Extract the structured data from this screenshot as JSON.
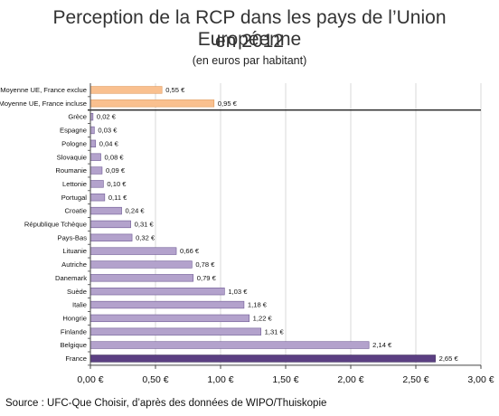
{
  "header": {
    "title_line1": "Perception de la RCP dans les pays de l’Union Européenne",
    "title_line2": "en 2012",
    "subtitle": "(en euros par habitant)"
  },
  "source": "Source : UFC-Que Choisir, d’après des données de WIPO/Thuiskopie",
  "chart_data": {
    "type": "bar",
    "orientation": "horizontal",
    "title": "Perception de la RCP dans les pays de l’Union Européenne en 2012",
    "subtitle": "(en euros par habitant)",
    "categories": [
      "Moyenne UE, France exclue",
      "Moyenne UE, France incluse",
      "Grèce",
      "Espagne",
      "Pologne",
      "Slovaquie",
      "Roumanie",
      "Lettonie",
      "Portugal",
      "Croatie",
      "République Tchèque",
      "Pays-Bas",
      "Lituanie",
      "Autriche",
      "Danemark",
      "Suède",
      "Italie",
      "Hongrie",
      "Finlande",
      "Belgique",
      "France"
    ],
    "values": [
      0.55,
      0.95,
      0.02,
      0.03,
      0.04,
      0.08,
      0.09,
      0.1,
      0.11,
      0.24,
      0.31,
      0.32,
      0.66,
      0.78,
      0.79,
      1.03,
      1.18,
      1.22,
      1.31,
      2.14,
      2.65
    ],
    "value_labels": [
      "0,55 €",
      "0,95 €",
      "0,02 €",
      "0,03 €",
      "0,04 €",
      "0,08 €",
      "0,09 €",
      "0,10 €",
      "0,11 €",
      "0,24 €",
      "0,31 €",
      "0,32 €",
      "0,66 €",
      "0,78 €",
      "0,79 €",
      "1,03 €",
      "1,18 €",
      "1,22 €",
      "1,31 €",
      "2,14 €",
      "2,65 €"
    ],
    "xlim": [
      0,
      3
    ],
    "xticks": [
      0,
      0.5,
      1,
      1.5,
      2,
      2.5,
      3
    ],
    "xtick_labels": [
      "0,00 €",
      "0,50 €",
      "1,00 €",
      "1,50 €",
      "2,00 €",
      "2,50 €",
      "3,00 €"
    ],
    "grid": true,
    "colors": {
      "average": "#f9c08f",
      "average_border": "#e09a5c",
      "country": "#b3a2cc",
      "country_border": "#6e5a94",
      "highlight": "#5b3f82",
      "highlight_border": "#3c2a5a",
      "grid": "#d9d9d9",
      "axis": "#444444",
      "separator": "#222222"
    }
  }
}
